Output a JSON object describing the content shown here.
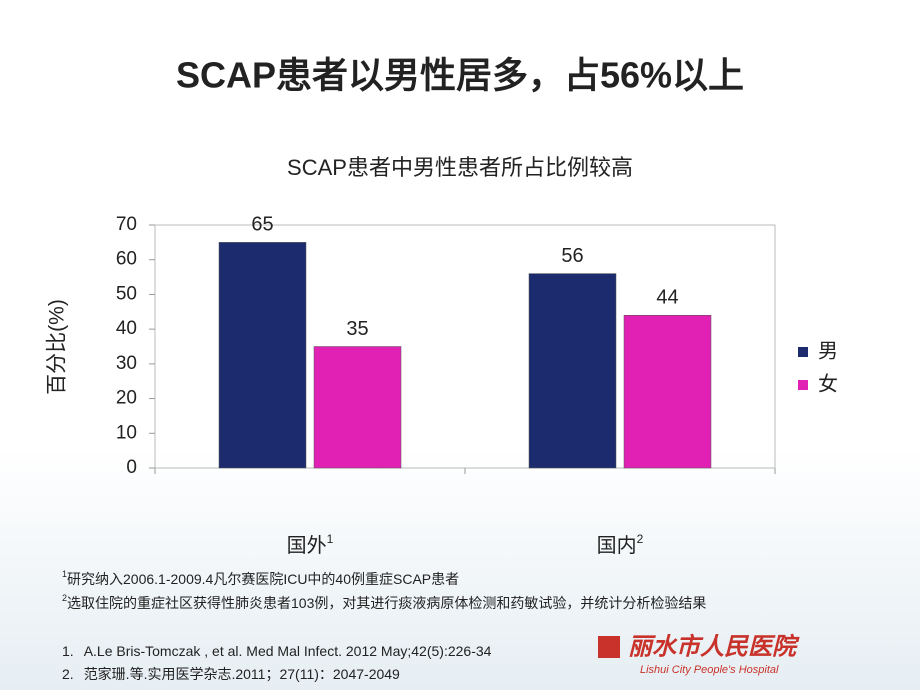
{
  "slide_title": "SCAP患者以男性居多，占56%以上",
  "chart_data": {
    "type": "bar",
    "title": "SCAP患者中男性患者所占比例较高",
    "y_label": "百分比(%)",
    "categories": [
      "国外",
      "国内"
    ],
    "category_notes": [
      "1",
      "2"
    ],
    "series": [
      {
        "name": "男",
        "color": "#1c2b6e",
        "values": [
          65,
          56
        ]
      },
      {
        "name": "女",
        "color": "#e021b4",
        "values": [
          35,
          44
        ]
      }
    ],
    "ylim": [
      0,
      70
    ],
    "yticks": [
      0,
      10,
      20,
      30,
      40,
      50,
      60,
      70
    ],
    "legend": "right"
  },
  "notes": [
    {
      "marker": "1",
      "text": "研究纳入2006.1-2009.4凡尔赛医院ICU中的40例重症SCAP患者"
    },
    {
      "marker": "2",
      "text": "选取住院的重症社区获得性肺炎患者103例，对其进行痰液病原体检测和药敏试验，并统计分析检验结果"
    }
  ],
  "references": [
    {
      "number": "1.",
      "text": "A.Le Bris-Tomczak , et al. Med Mal Infect. 2012 May;42(5):226-34"
    },
    {
      "number": "2.",
      "text": "范家珊.等.实用医学杂志.2011；27(11)：2047-2049"
    }
  ],
  "logo": {
    "name": "丽水市人民医院",
    "english": "Lishui City People's Hospital"
  }
}
